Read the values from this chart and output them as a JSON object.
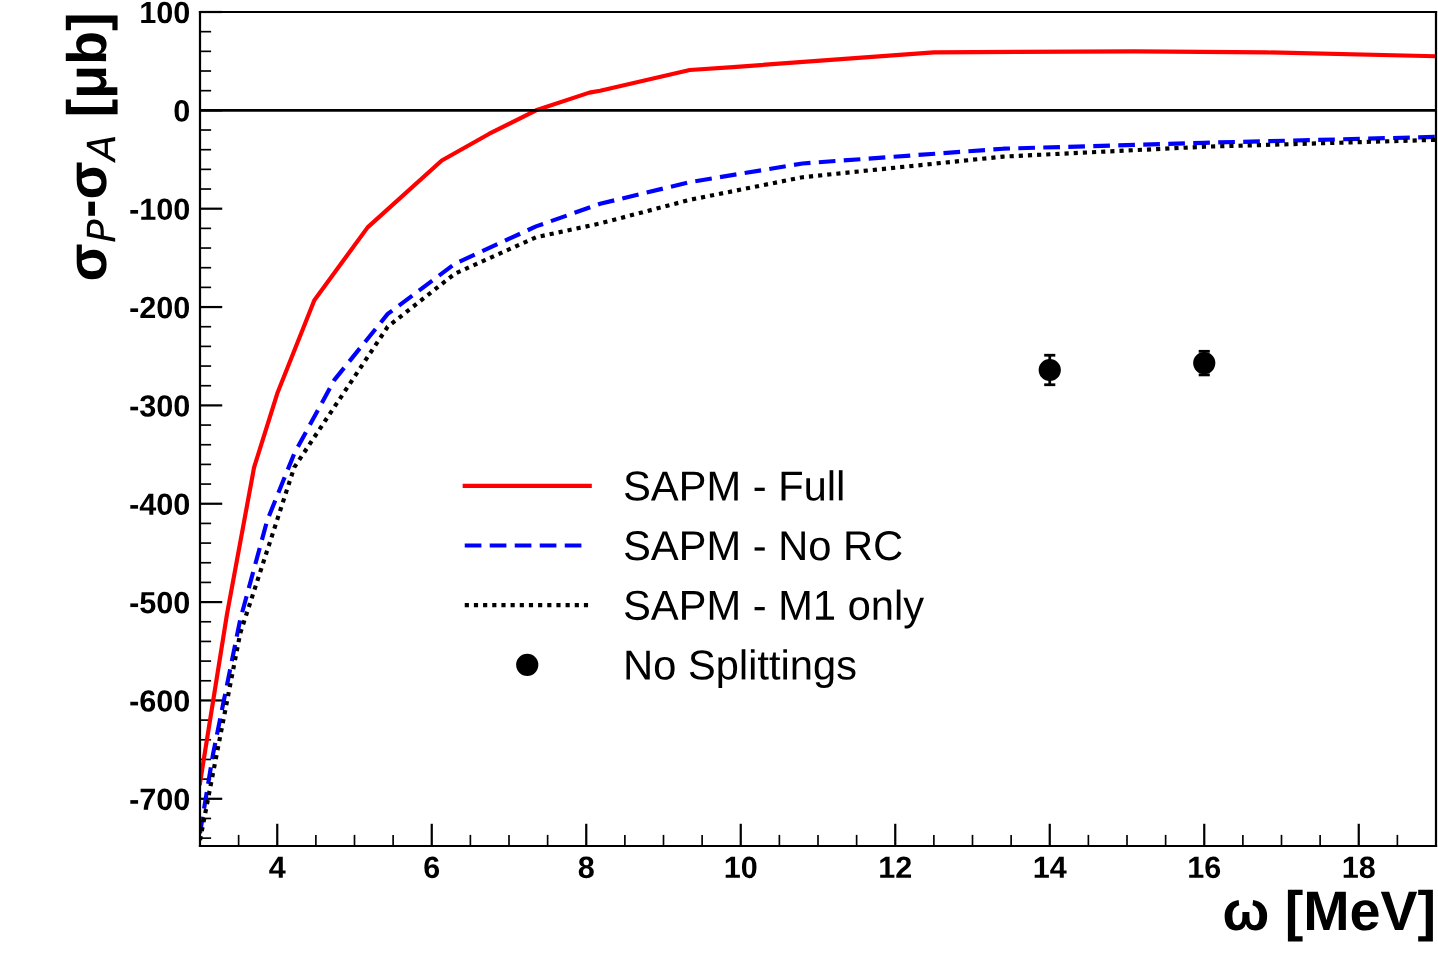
{
  "chart_data": {
    "type": "line",
    "xlabel": "ω [MeV]",
    "ylabel": "σ$_{P}$-σ$_{A}$ [μb]",
    "xlim": [
      3,
      19
    ],
    "xticks": [
      4,
      6,
      8,
      10,
      12,
      14,
      16,
      18
    ],
    "ylim": [
      -748,
      100
    ],
    "yticks": [
      -700,
      -600,
      -500,
      -400,
      -300,
      -200,
      -100,
      0,
      100
    ],
    "grid": false,
    "legend": "center",
    "ref_lines": [
      {
        "axis": "y",
        "value": 0,
        "color": "#000000"
      }
    ],
    "series": [
      {
        "name": "SAPM - Full",
        "color": "#ff0000",
        "line_style": "solid",
        "x": [
          3,
          3.35,
          3.7,
          4.0,
          4.48,
          5.17,
          6.13,
          6.74,
          7.35,
          8.04,
          8.18,
          9.34,
          9.9,
          12.5,
          15.1,
          16.8,
          19
        ],
        "values": [
          -684,
          -512,
          -363,
          -288,
          -193,
          -119,
          -51,
          -24,
          0,
          18,
          20,
          41,
          44,
          59,
          60,
          59,
          55
        ]
      },
      {
        "name": "SAPM - No RC",
        "color": "#0000ff",
        "line_style": "dashed",
        "x": [
          3,
          3.17,
          3.52,
          3.87,
          4.22,
          4.74,
          5.43,
          6.3,
          7.35,
          8.18,
          9.34,
          10.8,
          13.4,
          16.0,
          19
        ],
        "values": [
          -735,
          -654,
          -518,
          -417,
          -349,
          -274,
          -207,
          -156,
          -118,
          -95,
          -73,
          -54,
          -39,
          -33,
          -27
        ]
      },
      {
        "name": "SAPM - M1 only",
        "color": "#000000",
        "line_style": "dotted",
        "x": [
          3,
          3.52,
          4.22,
          5.43,
          6.3,
          7.35,
          8.18,
          9.34,
          10.8,
          13.4,
          16.0,
          19
        ],
        "values": [
          -742,
          -532,
          -363,
          -220,
          -166,
          -129,
          -115,
          -91,
          -68,
          -47,
          -37,
          -30
        ]
      },
      {
        "name": "No Splittings",
        "color": "#000000",
        "type": "scatter",
        "marker": "circle",
        "x": [
          14,
          16
        ],
        "values": [
          -264,
          -257
        ],
        "errors": [
          15,
          12
        ]
      }
    ]
  }
}
